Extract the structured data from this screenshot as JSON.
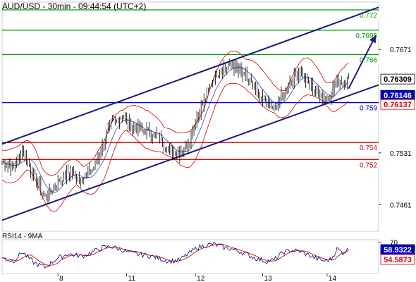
{
  "chart_data": {
    "type": "candlestick",
    "title": "AUD/USD - 30min - 09:44:54 (UTC+2)",
    "price_axis": {
      "ylim": [
        0.7425,
        0.7735
      ],
      "ticks": [
        "0.7671",
        "0.7531",
        "0.7461"
      ]
    },
    "x_ticks": [
      {
        "label": "8",
        "i": 39
      },
      {
        "label": "11",
        "i": 87
      },
      {
        "label": "12",
        "i": 135
      },
      {
        "label": "13",
        "i": 182
      },
      {
        "label": "14",
        "i": 227
      }
    ],
    "levels": [
      {
        "label": "0.772",
        "value": 0.77245,
        "color": "#009900"
      },
      {
        "label": "0.7695",
        "value": 0.7697,
        "color": "#009900"
      },
      {
        "label": "0.766",
        "value": 0.7664,
        "color": "#009900"
      },
      {
        "label": "0.759",
        "value": 0.7599,
        "color": "#0000cc"
      },
      {
        "label": "0.754",
        "value": 0.7545,
        "color": "#cc0000"
      },
      {
        "label": "0.752",
        "value": 0.7522,
        "color": "#cc0000"
      }
    ],
    "channel": {
      "upper": [
        [
          0,
          0.7543
        ],
        [
          263,
          0.7728
        ]
      ],
      "lower": [
        [
          0,
          0.744
        ],
        [
          263,
          0.7623
        ]
      ]
    },
    "arrow": [
      [
        242,
        0.7618
      ],
      [
        261,
        0.769
      ]
    ],
    "price_labels": [
      {
        "label": "0.76309",
        "value": 0.76309,
        "bg": "#ffffff",
        "fg": "#000000"
      },
      {
        "label": "0.76146",
        "value": 0.76146,
        "bg": "#0000cc",
        "fg": "#ffffff"
      },
      {
        "label": "0.76137",
        "value": 0.76137,
        "bg": "#ffffff",
        "fg": "#cc0000"
      }
    ],
    "close_anchors": [
      [
        0,
        0.752
      ],
      [
        8,
        0.751
      ],
      [
        14,
        0.7535
      ],
      [
        22,
        0.75
      ],
      [
        30,
        0.747
      ],
      [
        38,
        0.749
      ],
      [
        46,
        0.7505
      ],
      [
        56,
        0.7495
      ],
      [
        64,
        0.751
      ],
      [
        70,
        0.754
      ],
      [
        76,
        0.757
      ],
      [
        84,
        0.758
      ],
      [
        92,
        0.7565
      ],
      [
        100,
        0.756
      ],
      [
        108,
        0.7555
      ],
      [
        116,
        0.7535
      ],
      [
        124,
        0.7532
      ],
      [
        130,
        0.7545
      ],
      [
        136,
        0.758
      ],
      [
        142,
        0.7605
      ],
      [
        148,
        0.7635
      ],
      [
        154,
        0.7645
      ],
      [
        160,
        0.765
      ],
      [
        166,
        0.764
      ],
      [
        172,
        0.763
      ],
      [
        178,
        0.761
      ],
      [
        184,
        0.76
      ],
      [
        190,
        0.759
      ],
      [
        196,
        0.761
      ],
      [
        202,
        0.763
      ],
      [
        208,
        0.764
      ],
      [
        214,
        0.7625
      ],
      [
        220,
        0.7615
      ],
      [
        226,
        0.7605
      ],
      [
        230,
        0.761
      ],
      [
        234,
        0.7632
      ],
      [
        238,
        0.7625
      ],
      [
        242,
        0.7633
      ]
    ],
    "band_halfwidth": 0.002,
    "rsi": {
      "label": "RSI14 - 9MA",
      "ylim": [
        20,
        75
      ],
      "tick": "70",
      "labels": [
        {
          "label": "58.9322",
          "value": 58.9322,
          "bg": "#0000cc",
          "fg": "#ffffff"
        },
        {
          "label": "54.5873",
          "value": 54.5873,
          "bg": "#ffffff",
          "fg": "#cc0000"
        }
      ],
      "anchors": [
        [
          0,
          45
        ],
        [
          8,
          40
        ],
        [
          14,
          55
        ],
        [
          22,
          38
        ],
        [
          30,
          30
        ],
        [
          38,
          44
        ],
        [
          46,
          52
        ],
        [
          56,
          48
        ],
        [
          64,
          56
        ],
        [
          70,
          62
        ],
        [
          76,
          64
        ],
        [
          84,
          58
        ],
        [
          92,
          52
        ],
        [
          100,
          50
        ],
        [
          108,
          46
        ],
        [
          116,
          40
        ],
        [
          124,
          42
        ],
        [
          130,
          52
        ],
        [
          136,
          62
        ],
        [
          142,
          66
        ],
        [
          148,
          68
        ],
        [
          154,
          63
        ],
        [
          160,
          60
        ],
        [
          166,
          56
        ],
        [
          172,
          50
        ],
        [
          178,
          44
        ],
        [
          184,
          40
        ],
        [
          190,
          42
        ],
        [
          196,
          54
        ],
        [
          202,
          58
        ],
        [
          208,
          56
        ],
        [
          214,
          50
        ],
        [
          220,
          44
        ],
        [
          226,
          40
        ],
        [
          230,
          44
        ],
        [
          234,
          60
        ],
        [
          238,
          54
        ],
        [
          242,
          58.9322
        ]
      ]
    }
  }
}
